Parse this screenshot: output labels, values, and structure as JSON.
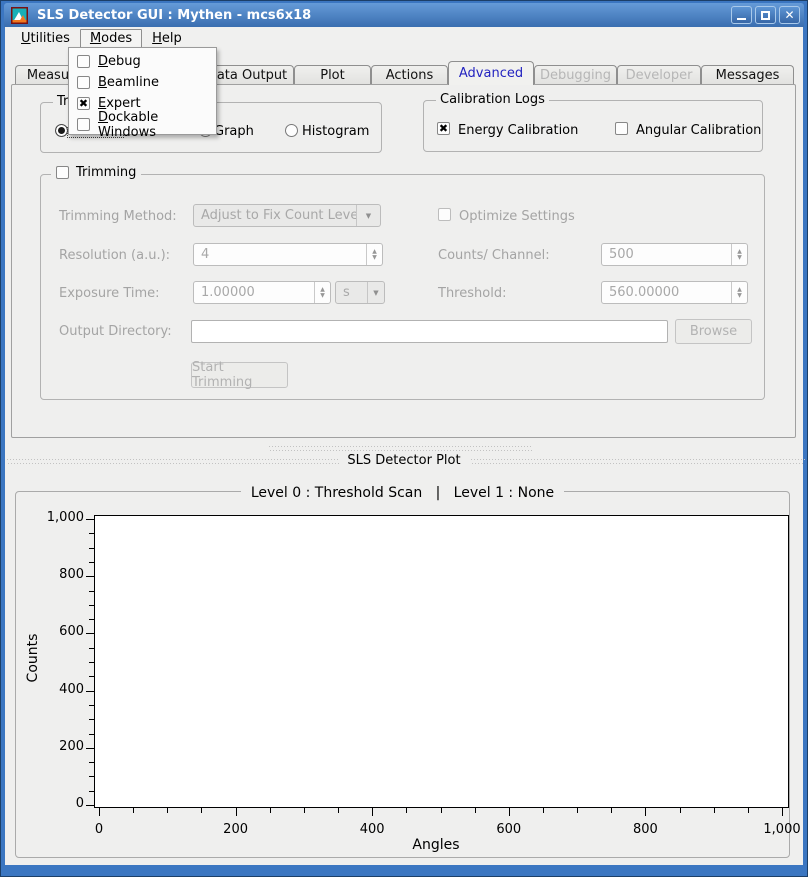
{
  "window": {
    "title": "SLS Detector GUI : Mythen - mcs6x18"
  },
  "colors": {
    "titlebar_blue_top": "#659bd8",
    "titlebar_blue_bottom": "#3a6eb0",
    "window_border_blue": "#3b76c1",
    "selected_tab_text": "#2323c0",
    "disabled_text": "#a4a4a4",
    "content_background": "#efefee"
  },
  "menubar": {
    "items": [
      {
        "label": "Utilities",
        "open": false
      },
      {
        "label": "Modes",
        "open": true
      },
      {
        "label": "Help",
        "open": false
      }
    ]
  },
  "modes_menu": {
    "items": [
      {
        "label": "Debug",
        "checked": false
      },
      {
        "label": "Beamline",
        "checked": false
      },
      {
        "label": "Expert",
        "checked": true
      },
      {
        "label": "Dockable Windows",
        "checked": false
      }
    ]
  },
  "tabbar": {
    "tabs": [
      {
        "label": "Measurement",
        "state": "normal"
      },
      {
        "label": "",
        "state": "normal"
      },
      {
        "label": "Data Output",
        "state": "normal"
      },
      {
        "label": "Plot",
        "state": "normal"
      },
      {
        "label": "Actions",
        "state": "normal"
      },
      {
        "label": "Advanced",
        "state": "selected"
      },
      {
        "label": "Debugging",
        "state": "disabled"
      },
      {
        "label": "Developer",
        "state": "disabled"
      },
      {
        "label": "Messages",
        "state": "normal"
      }
    ]
  },
  "advanced_tab": {
    "trim_group": {
      "title": "Trim",
      "radios": [
        {
          "label": "",
          "selected": true
        },
        {
          "label": "Graph",
          "selected": false
        },
        {
          "label": "Histogram",
          "selected": false
        }
      ]
    },
    "calibration_group": {
      "title": "Calibration Logs",
      "energy": {
        "label": "Energy Calibration",
        "checked": true
      },
      "angular": {
        "label": "Angular Calibration",
        "checked": false
      }
    },
    "trimming_group": {
      "title": "Trimming",
      "enabled": false,
      "title_checkbox_checked": false,
      "method": {
        "label": "Trimming Method:",
        "value": "Adjust to Fix Count Level"
      },
      "optimize": {
        "label": "Optimize Settings",
        "checked": false
      },
      "resolution": {
        "label": "Resolution (a.u.):",
        "value": "4"
      },
      "counts_channel": {
        "label": "Counts/ Channel:",
        "value": "500"
      },
      "exposure": {
        "label": "Exposure Time:",
        "value": "1.00000",
        "unit": "s"
      },
      "threshold": {
        "label": "Threshold:",
        "value": "560.00000"
      },
      "output_dir": {
        "label": "Output Directory:",
        "value": ""
      },
      "browse_label": "Browse",
      "start_label": "Start Trimming"
    }
  },
  "plot_dock": {
    "title": "SLS Detector Plot"
  },
  "chart_data": {
    "type": "line",
    "title": "Level 0 : Threshold Scan   |   Level 1 : None",
    "xlabel": "Angles",
    "ylabel": "Counts",
    "xlim": [
      0,
      1000
    ],
    "ylim": [
      0,
      1000
    ],
    "xticks": [
      0,
      200,
      400,
      600,
      800,
      1000
    ],
    "yticks": [
      0,
      200,
      400,
      600,
      800,
      1000
    ],
    "xtick_labels": [
      "0",
      "200",
      "400",
      "600",
      "800",
      "1,000"
    ],
    "ytick_labels": [
      "0",
      "200",
      "400",
      "600",
      "800",
      "1,000"
    ],
    "minor_ticks_per_interval": 3,
    "grid": false,
    "legend": false,
    "series": []
  }
}
